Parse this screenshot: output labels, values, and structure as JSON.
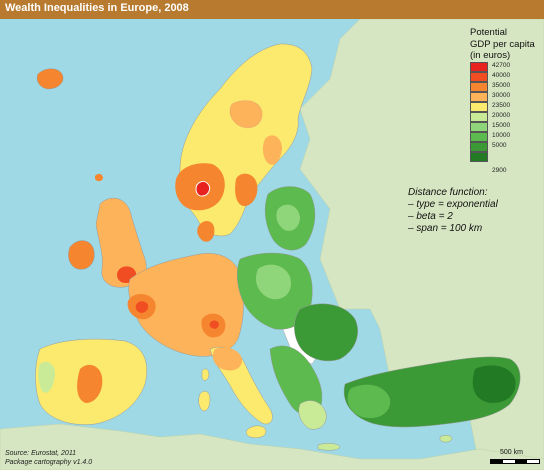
{
  "map": {
    "title": "Wealth Inequalities in Europe, 2008",
    "legend": {
      "title_lines": [
        "Potential",
        "GDP per capita",
        "(in euros)"
      ],
      "classes": [
        {
          "label": "42700",
          "color": "#e8231f"
        },
        {
          "label": "40000",
          "color": "#f04e22"
        },
        {
          "label": "35000",
          "color": "#f5852e"
        },
        {
          "label": "30000",
          "color": "#fdb35a"
        },
        {
          "label": "23500",
          "color": "#fbea6e"
        },
        {
          "label": "20000",
          "color": "#c9ea96"
        },
        {
          "label": "15000",
          "color": "#8fd57a"
        },
        {
          "label": "10000",
          "color": "#5cba4e"
        },
        {
          "label": "5000",
          "color": "#3b9a36"
        },
        {
          "label": "",
          "color": "#237a24"
        }
      ],
      "min_label": "2900"
    },
    "distance_function": [
      "Distance function:",
      "– type = exponential",
      "– beta = 2",
      "– span = 100 km"
    ],
    "source": [
      "Source: Eurostat, 2011",
      "Package cartography v1.4.0"
    ],
    "scale_label": "500 km",
    "colors": {
      "sea": "#9fd9e6",
      "land_outside": "#d6e6c2",
      "title_bar": "#b77a2e",
      "land_white": "#ffffff"
    }
  }
}
